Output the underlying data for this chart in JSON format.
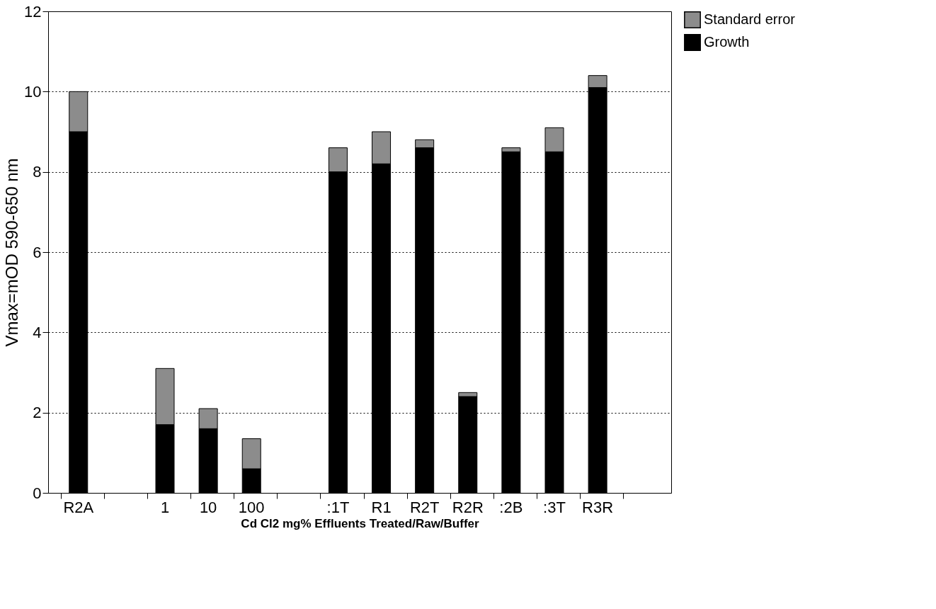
{
  "chart_data": {
    "type": "bar",
    "stacked": true,
    "categories": [
      "R2A",
      null,
      "1",
      "10",
      "100",
      null,
      ":1T",
      "R1",
      "R2T",
      "R2R",
      ":2B",
      ":3T",
      "R3R",
      null
    ],
    "series": [
      {
        "name": "Growth",
        "color": "#000000",
        "values": [
          9.0,
          null,
          1.7,
          1.6,
          0.6,
          null,
          8.0,
          8.2,
          8.6,
          2.4,
          8.5,
          8.5,
          10.1,
          null
        ]
      },
      {
        "name": "Standard error",
        "color": "#8c8c8c",
        "values": [
          1.0,
          null,
          1.4,
          0.5,
          0.75,
          null,
          0.6,
          0.8,
          0.2,
          0.1,
          0.1,
          0.6,
          0.3,
          null
        ]
      }
    ],
    "xlabel": "Cd Cl2 mg%   Effluents  Treated/Raw/Buffer",
    "ylabel": "Vmax=mOD 590-650 nm",
    "ylim": [
      0,
      12
    ],
    "yticks": [
      0,
      2,
      4,
      6,
      8,
      10,
      12
    ],
    "grid": "y",
    "legend": "top right"
  }
}
